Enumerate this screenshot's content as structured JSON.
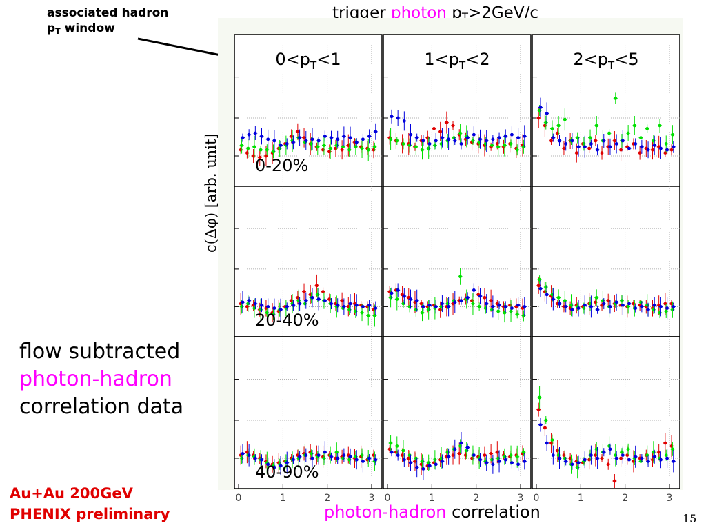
{
  "annotation": {
    "line1": "associated hadron",
    "line2_main": "p",
    "line2_sub": "T",
    "line2_rest": " window"
  },
  "top_title": {
    "pre": "trigger ",
    "highlight": "photon",
    "mid": " p",
    "sub": "T",
    "post": ">2GeV/c"
  },
  "y_axis_label": {
    "pre": "c(",
    "greek": "Δφ",
    "post": ") [arb. unit]"
  },
  "description": {
    "line1": "flow subtracted",
    "line2": "photon-hadron",
    "line3": "correlation data"
  },
  "collision": {
    "line1": "Au+Au 200GeV",
    "line2": "PHENIX preliminary"
  },
  "x_axis_label": {
    "highlight": "photon-hadron",
    "rest": " correlation"
  },
  "page_number": "15",
  "colors": {
    "red": "#e00000",
    "green": "#00e000",
    "blue": "#0000dd",
    "magenta": "#ff00ff",
    "panel_bg": "#f6f9f2"
  },
  "chart_data": {
    "type": "scatter",
    "x_ticks": [
      "0",
      "1",
      "2",
      "3"
    ],
    "xlim": [
      0,
      3.14
    ],
    "ylim": [
      0,
      1
    ],
    "grid": true,
    "columns": [
      {
        "pre": "0<p",
        "sub": "T",
        "post": "<1"
      },
      {
        "pre": "1<p",
        "sub": "T",
        "post": "<2"
      },
      {
        "pre": "2<p",
        "sub": "T",
        "post": "<5"
      }
    ],
    "rows": [
      "0-20%",
      "20-40%",
      "40-90%"
    ],
    "series_colors": [
      "#e00000",
      "#00e000",
      "#0000dd"
    ],
    "panels": [
      [
        {
          "red": [
            0.24,
            0.22,
            0.2,
            0.19,
            0.2,
            0.22,
            0.25,
            0.28,
            0.33,
            0.36,
            0.32,
            0.28,
            0.26,
            0.24,
            0.23,
            0.25,
            0.24,
            0.27,
            0.29,
            0.26,
            0.25,
            0.24
          ],
          "green": [
            0.27,
            0.25,
            0.26,
            0.24,
            0.24,
            0.23,
            0.25,
            0.27,
            0.3,
            0.32,
            0.29,
            0.28,
            0.26,
            0.27,
            0.25,
            0.27,
            0.26,
            0.24,
            0.26,
            0.25,
            0.24,
            0.26
          ],
          "blue": [
            0.32,
            0.34,
            0.35,
            0.33,
            0.31,
            0.3,
            0.27,
            0.28,
            0.29,
            0.32,
            0.3,
            0.31,
            0.3,
            0.33,
            0.32,
            0.31,
            0.33,
            0.32,
            0.29,
            0.31,
            0.33,
            0.36
          ]
        },
        {
          "red": [
            0.32,
            0.3,
            0.28,
            0.28,
            0.26,
            0.3,
            0.32,
            0.38,
            0.36,
            0.42,
            0.4,
            0.34,
            0.31,
            0.29,
            0.28,
            0.27,
            0.26,
            0.28,
            0.26,
            0.28,
            0.25,
            0.27
          ],
          "green": [
            0.31,
            0.3,
            0.28,
            0.27,
            0.26,
            0.24,
            0.25,
            0.27,
            0.28,
            0.3,
            0.32,
            0.35,
            0.33,
            0.3,
            0.29,
            0.28,
            0.27,
            0.26,
            0.27,
            0.28,
            0.24,
            0.26
          ],
          "blue": [
            0.46,
            0.45,
            0.43,
            0.34,
            0.32,
            0.3,
            0.28,
            0.3,
            0.32,
            0.31,
            0.3,
            0.28,
            0.32,
            0.34,
            0.31,
            0.3,
            0.31,
            0.32,
            0.33,
            0.34,
            0.32,
            0.33
          ]
        },
        {
          "red": [
            0.45,
            0.4,
            0.3,
            0.35,
            0.25,
            0.3,
            0.22,
            0.28,
            0.25,
            0.3,
            0.22,
            0.26,
            0.3,
            0.24,
            0.26,
            0.28,
            0.22,
            0.25,
            0.24,
            0.26,
            0.22,
            0.24
          ],
          "green": [
            0.5,
            0.42,
            0.38,
            0.4,
            0.44,
            0.3,
            0.32,
            0.28,
            0.32,
            0.4,
            0.3,
            0.35,
            0.58,
            0.3,
            0.35,
            0.4,
            0.32,
            0.38,
            0.3,
            0.4,
            0.28,
            0.34
          ],
          "blue": [
            0.52,
            0.48,
            0.32,
            0.3,
            0.28,
            0.3,
            0.26,
            0.26,
            0.28,
            0.24,
            0.3,
            0.26,
            0.28,
            0.3,
            0.25,
            0.28,
            0.26,
            0.24,
            0.27,
            0.25,
            0.24,
            0.26
          ]
        }
      ],
      [
        {
          "red": [
            0.22,
            0.2,
            0.21,
            0.18,
            0.19,
            0.16,
            0.17,
            0.2,
            0.24,
            0.26,
            0.3,
            0.28,
            0.34,
            0.3,
            0.25,
            0.22,
            0.24,
            0.2,
            0.22,
            0.21,
            0.2,
            0.18
          ],
          "green": [
            0.2,
            0.22,
            0.19,
            0.18,
            0.16,
            0.15,
            0.18,
            0.19,
            0.22,
            0.24,
            0.22,
            0.26,
            0.28,
            0.24,
            0.22,
            0.2,
            0.19,
            0.18,
            0.17,
            0.16,
            0.14,
            0.14
          ],
          "blue": [
            0.23,
            0.24,
            0.22,
            0.21,
            0.2,
            0.19,
            0.18,
            0.2,
            0.21,
            0.22,
            0.24,
            0.26,
            0.25,
            0.24,
            0.22,
            0.21,
            0.2,
            0.22,
            0.21,
            0.2,
            0.21,
            0.19
          ]
        },
        {
          "red": [
            0.3,
            0.31,
            0.28,
            0.26,
            0.23,
            0.22,
            0.2,
            0.21,
            0.18,
            0.2,
            0.22,
            0.24,
            0.25,
            0.24,
            0.28,
            0.26,
            0.24,
            0.22,
            0.2,
            0.21,
            0.2,
            0.19
          ],
          "green": [
            0.26,
            0.25,
            0.22,
            0.2,
            0.18,
            0.16,
            0.18,
            0.19,
            0.2,
            0.22,
            0.24,
            0.4,
            0.25,
            0.22,
            0.2,
            0.19,
            0.18,
            0.17,
            0.16,
            0.17,
            0.15,
            0.14
          ],
          "blue": [
            0.29,
            0.31,
            0.27,
            0.25,
            0.24,
            0.2,
            0.21,
            0.2,
            0.22,
            0.2,
            0.23,
            0.24,
            0.26,
            0.31,
            0.27,
            0.22,
            0.2,
            0.21,
            0.2,
            0.19,
            0.21,
            0.2
          ]
        },
        {
          "red": [
            0.34,
            0.3,
            0.27,
            0.22,
            0.2,
            0.19,
            0.21,
            0.2,
            0.22,
            0.23,
            0.21,
            0.24,
            0.22,
            0.21,
            0.2,
            0.22,
            0.21,
            0.2,
            0.19,
            0.21,
            0.22,
            0.22
          ],
          "green": [
            0.38,
            0.33,
            0.28,
            0.26,
            0.24,
            0.21,
            0.2,
            0.19,
            0.22,
            0.26,
            0.24,
            0.2,
            0.22,
            0.24,
            0.2,
            0.19,
            0.23,
            0.21,
            0.18,
            0.16,
            0.17,
            0.18
          ],
          "blue": [
            0.32,
            0.28,
            0.25,
            0.22,
            0.2,
            0.18,
            0.19,
            0.21,
            0.2,
            0.18,
            0.22,
            0.2,
            0.23,
            0.21,
            0.22,
            0.19,
            0.2,
            0.18,
            0.21,
            0.2,
            0.19,
            0.2
          ]
        }
      ],
      [
        {
          "red": [
            0.22,
            0.24,
            0.22,
            0.2,
            0.18,
            0.16,
            0.17,
            0.18,
            0.2,
            0.22,
            0.23,
            0.24,
            0.22,
            0.21,
            0.22,
            0.2,
            0.21,
            0.22,
            0.2,
            0.21,
            0.19,
            0.22
          ],
          "green": [
            0.2,
            0.22,
            0.21,
            0.19,
            0.17,
            0.15,
            0.16,
            0.18,
            0.19,
            0.2,
            0.22,
            0.23,
            0.21,
            0.2,
            0.22,
            0.24,
            0.2,
            0.19,
            0.21,
            0.22,
            0.2,
            0.18
          ],
          "blue": [
            0.23,
            0.22,
            0.2,
            0.19,
            0.16,
            0.14,
            0.15,
            0.17,
            0.19,
            0.21,
            0.22,
            0.2,
            0.22,
            0.24,
            0.21,
            0.2,
            0.22,
            0.21,
            0.19,
            0.18,
            0.2,
            0.19
          ]
        },
        {
          "red": [
            0.26,
            0.24,
            0.22,
            0.2,
            0.18,
            0.16,
            0.15,
            0.17,
            0.19,
            0.21,
            0.22,
            0.23,
            0.22,
            0.2,
            0.21,
            0.22,
            0.23,
            0.24,
            0.22,
            0.21,
            0.22,
            0.23
          ],
          "green": [
            0.3,
            0.28,
            0.25,
            0.22,
            0.2,
            0.18,
            0.17,
            0.19,
            0.2,
            0.24,
            0.26,
            0.28,
            0.25,
            0.22,
            0.2,
            0.18,
            0.19,
            0.2,
            0.21,
            0.22,
            0.21,
            0.24
          ],
          "blue": [
            0.24,
            0.22,
            0.19,
            0.17,
            0.14,
            0.13,
            0.15,
            0.16,
            0.18,
            0.21,
            0.26,
            0.3,
            0.27,
            0.22,
            0.19,
            0.17,
            0.16,
            0.18,
            0.19,
            0.17,
            0.16,
            0.18
          ]
        },
        {
          "red": [
            0.52,
            0.4,
            0.3,
            0.25,
            0.22,
            0.2,
            0.18,
            0.17,
            0.19,
            0.22,
            0.2,
            0.16,
            0.05,
            0.2,
            0.22,
            0.18,
            0.2,
            0.22,
            0.19,
            0.24,
            0.3,
            0.28
          ],
          "green": [
            0.6,
            0.45,
            0.32,
            0.22,
            0.2,
            0.16,
            0.14,
            0.18,
            0.22,
            0.26,
            0.24,
            0.28,
            0.22,
            0.24,
            0.26,
            0.2,
            0.18,
            0.22,
            0.24,
            0.2,
            0.22,
            0.26
          ],
          "blue": [
            0.42,
            0.3,
            0.22,
            0.2,
            0.18,
            0.16,
            0.17,
            0.19,
            0.22,
            0.2,
            0.24,
            0.26,
            0.2,
            0.22,
            0.19,
            0.21,
            0.2,
            0.18,
            0.21,
            0.19,
            0.2,
            0.18
          ]
        }
      ]
    ]
  }
}
